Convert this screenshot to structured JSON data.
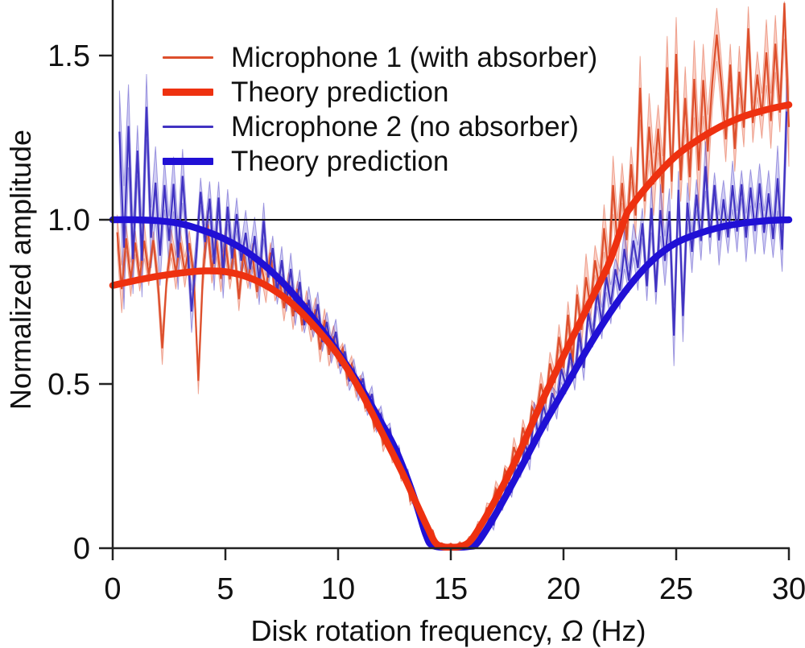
{
  "chart_data": {
    "type": "line",
    "title": "",
    "xlabel_prefix": "Disk rotation frequency, ",
    "xlabel_omega": "Ω",
    "xlabel_suffix": " (Hz)",
    "ylabel": "Normalized amplitude",
    "xlim": [
      0,
      30
    ],
    "ylim": [
      0,
      1.67
    ],
    "x_ticks": [
      0,
      5,
      10,
      15,
      20,
      25,
      30
    ],
    "y_ticks": [
      0,
      0.5,
      1.0,
      1.5
    ],
    "y_tick_labels": [
      "0",
      "0.5",
      "1.0",
      "1.5"
    ],
    "grid": false,
    "reference_line_y": 1.0,
    "colors": {
      "mic1_line": "#dd4f2c",
      "theory1_line": "#ee3110",
      "mic1_band": "rgba(238,93,60,0.30)",
      "mic2_line": "#4133c2",
      "theory2_line": "#2010d5",
      "mic2_band": "rgba(98,88,214,0.30)",
      "reference_line": "#111111",
      "axis": "#222222",
      "text": "#111111"
    },
    "series": [
      {
        "name": "Microphone 1 (with absorber)",
        "role": "experiment",
        "theory_ref": 1,
        "color": "#dd4f2c",
        "band_fill": "rgba(238,93,60,0.30)",
        "noise_model": {
          "seed": 9,
          "x_start": 0.2,
          "x_step": 0.2,
          "bias": [
            [
              0,
              0.09
            ],
            [
              1,
              0.07
            ],
            [
              2,
              0.05
            ],
            [
              4,
              0.035
            ],
            [
              6,
              0.025
            ],
            [
              8,
              0.015
            ],
            [
              10,
              0.01
            ],
            [
              12,
              0.005
            ],
            [
              14,
              0.002
            ],
            [
              16,
              0.002
            ],
            [
              18,
              0.012
            ],
            [
              20,
              0.028
            ],
            [
              22,
              0.042
            ],
            [
              24,
              0.05
            ],
            [
              26,
              0.05
            ],
            [
              28,
              0.042
            ],
            [
              30,
              0.06
            ]
          ],
          "amplitude": [
            [
              0,
              0.15
            ],
            [
              0.5,
              0.1
            ],
            [
              1,
              0.075
            ],
            [
              3,
              0.065
            ],
            [
              5,
              0.06
            ],
            [
              7,
              0.055
            ],
            [
              9,
              0.05
            ],
            [
              11,
              0.04
            ],
            [
              12,
              0.033
            ],
            [
              13,
              0.024
            ],
            [
              14,
              0.012
            ],
            [
              15,
              0.006
            ],
            [
              16,
              0.012
            ],
            [
              17,
              0.03
            ],
            [
              18,
              0.045
            ],
            [
              19,
              0.055
            ],
            [
              20,
              0.07
            ],
            [
              21,
              0.09
            ],
            [
              22,
              0.11
            ],
            [
              23,
              0.125
            ],
            [
              24,
              0.14
            ],
            [
              25,
              0.15
            ],
            [
              27,
              0.15
            ],
            [
              29,
              0.14
            ],
            [
              30,
              0.16
            ]
          ],
          "spikes": [
            {
              "x": 2.2,
              "dv": -0.27
            },
            {
              "x": 3.8,
              "dv": -0.37
            },
            {
              "x": 23.4,
              "dv": 0.28
            },
            {
              "x": 25.0,
              "dv": 0.26
            },
            {
              "x": 26.8,
              "dv": 0.24
            },
            {
              "x": 28.2,
              "dv": 0.22
            },
            {
              "x": 29.8,
              "dv": 0.27
            }
          ]
        }
      },
      {
        "name": "Theory prediction",
        "role": "theory",
        "color": "#ee3110",
        "points": [
          [
            0,
            0.8
          ],
          [
            1,
            0.815
          ],
          [
            2,
            0.828
          ],
          [
            3,
            0.838
          ],
          [
            4,
            0.844
          ],
          [
            5,
            0.842
          ],
          [
            6,
            0.825
          ],
          [
            7,
            0.792
          ],
          [
            8,
            0.742
          ],
          [
            9,
            0.672
          ],
          [
            10,
            0.588
          ],
          [
            11,
            0.478
          ],
          [
            12,
            0.345
          ],
          [
            12.5,
            0.278
          ],
          [
            13,
            0.208
          ],
          [
            13.5,
            0.132
          ],
          [
            14,
            0.058
          ],
          [
            14.3,
            0.018
          ],
          [
            14.6,
            0.005
          ],
          [
            15,
            0.003
          ],
          [
            15.4,
            0.005
          ],
          [
            15.8,
            0.018
          ],
          [
            16.2,
            0.055
          ],
          [
            17,
            0.15
          ],
          [
            18,
            0.285
          ],
          [
            19,
            0.44
          ],
          [
            20,
            0.585
          ],
          [
            21,
            0.725
          ],
          [
            22,
            0.865
          ],
          [
            22.7,
            1.0
          ],
          [
            23,
            1.04
          ],
          [
            24,
            1.125
          ],
          [
            25,
            1.195
          ],
          [
            26,
            1.245
          ],
          [
            27,
            1.285
          ],
          [
            28,
            1.315
          ],
          [
            29,
            1.335
          ],
          [
            30,
            1.35
          ]
        ]
      },
      {
        "name": "Microphone 2 (no absorber)",
        "role": "experiment",
        "theory_ref": 3,
        "color": "#4133c2",
        "band_fill": "rgba(98,88,214,0.30)",
        "noise_model": {
          "seed": 21,
          "x_start": 0.3,
          "x_step": 0.2,
          "bias": [
            [
              0,
              0.1
            ],
            [
              0.5,
              0.08
            ],
            [
              1,
              0.06
            ],
            [
              2,
              0.035
            ],
            [
              3,
              0.025
            ],
            [
              5,
              0.015
            ],
            [
              7,
              0.01
            ],
            [
              9,
              0.005
            ],
            [
              12,
              0.002
            ],
            [
              15,
              0
            ],
            [
              17,
              0.005
            ],
            [
              19,
              0.02
            ],
            [
              21,
              0.05
            ],
            [
              22,
              0.065
            ],
            [
              23,
              0.07
            ],
            [
              24,
              0.07
            ],
            [
              25,
              0.05
            ],
            [
              26,
              0.045
            ],
            [
              27,
              0.04
            ],
            [
              28,
              0.03
            ],
            [
              30,
              0.03
            ]
          ],
          "amplitude": [
            [
              0,
              0.28
            ],
            [
              0.5,
              0.25
            ],
            [
              1,
              0.2
            ],
            [
              2,
              0.15
            ],
            [
              3,
              0.13
            ],
            [
              4,
              0.115
            ],
            [
              5,
              0.1
            ],
            [
              6,
              0.09
            ],
            [
              7,
              0.08
            ],
            [
              8,
              0.07
            ],
            [
              9,
              0.06
            ],
            [
              10,
              0.05
            ],
            [
              11,
              0.042
            ],
            [
              12,
              0.035
            ],
            [
              13,
              0.026
            ],
            [
              14,
              0.012
            ],
            [
              15,
              0.006
            ],
            [
              16,
              0.012
            ],
            [
              17,
              0.028
            ],
            [
              18,
              0.04
            ],
            [
              19,
              0.05
            ],
            [
              20,
              0.06
            ],
            [
              21,
              0.07
            ],
            [
              22,
              0.08
            ],
            [
              23,
              0.085
            ],
            [
              24,
              0.1
            ],
            [
              25,
              0.12
            ],
            [
              26,
              0.1
            ],
            [
              27,
              0.095
            ],
            [
              28,
              0.1
            ],
            [
              29,
              0.11
            ],
            [
              30,
              0.15
            ]
          ],
          "spikes": [
            {
              "x": 2.9,
              "dv": -0.13
            },
            {
              "x": 3.5,
              "dv": -0.28
            },
            {
              "x": 24.9,
              "dv": -0.33
            },
            {
              "x": 25.3,
              "dv": -0.28
            },
            {
              "x": 29.9,
              "dv": 0.3
            }
          ]
        }
      },
      {
        "name": "Theory prediction",
        "role": "theory",
        "color": "#2010d5",
        "points": [
          [
            0,
            1.0
          ],
          [
            1,
            1.0
          ],
          [
            2,
            0.997
          ],
          [
            3,
            0.988
          ],
          [
            4,
            0.968
          ],
          [
            5,
            0.94
          ],
          [
            6,
            0.9
          ],
          [
            7,
            0.845
          ],
          [
            8,
            0.775
          ],
          [
            9,
            0.69
          ],
          [
            10,
            0.595
          ],
          [
            11,
            0.49
          ],
          [
            12,
            0.372
          ],
          [
            12.5,
            0.308
          ],
          [
            13,
            0.225
          ],
          [
            13.5,
            0.128
          ],
          [
            13.9,
            0.04
          ],
          [
            14.2,
            0.008
          ],
          [
            15,
            0.003
          ],
          [
            15.8,
            0.005
          ],
          [
            16.2,
            0.018
          ],
          [
            17,
            0.105
          ],
          [
            18,
            0.23
          ],
          [
            19,
            0.36
          ],
          [
            20,
            0.48
          ],
          [
            21,
            0.6
          ],
          [
            22,
            0.71
          ],
          [
            23,
            0.805
          ],
          [
            24,
            0.88
          ],
          [
            25,
            0.93
          ],
          [
            26,
            0.958
          ],
          [
            27,
            0.978
          ],
          [
            28,
            0.99
          ],
          [
            29,
            0.997
          ],
          [
            30,
            1.0
          ]
        ]
      }
    ],
    "legend": {
      "position": "top-left",
      "items": [
        {
          "label": "Microphone 1 (with absorber)",
          "color": "#dd4f2c",
          "thick": false
        },
        {
          "label": "Theory prediction",
          "color": "#ee3110",
          "thick": true
        },
        {
          "label": "Microphone 2 (no absorber)",
          "color": "#4133c2",
          "thick": false
        },
        {
          "label": "Theory prediction",
          "color": "#2010d5",
          "thick": true
        }
      ]
    }
  }
}
